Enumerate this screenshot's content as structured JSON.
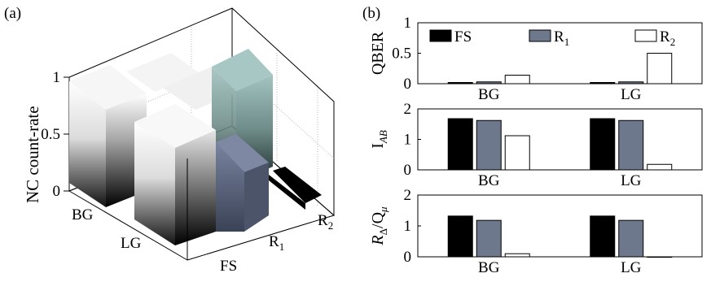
{
  "figure": {
    "panel_a_label": "(a)",
    "panel_b_label": "(b)"
  },
  "chart_data": [
    {
      "panel": "(a)",
      "type": "bar",
      "subtype": "3d-bar",
      "zlabel": "NC count-rate",
      "zlim": [
        0,
        1
      ],
      "zticks": [
        "0",
        "0.5",
        "1"
      ],
      "rows": [
        "BG",
        "LG"
      ],
      "cols": [
        "FS",
        "R",
        "R"
      ],
      "col_subscripts": [
        "",
        "1",
        "2"
      ],
      "values": {
        "BG": [
          1.0,
          1.0,
          1.0
        ],
        "LG": [
          1.0,
          0.5,
          0.05
        ]
      },
      "colors": {
        "FS": "gradient-white-black",
        "R1": "#6b7590",
        "R2": "#000000",
        "back_R2": "#9bbcb9"
      }
    },
    {
      "panel": "(b)",
      "type": "bar",
      "legend": [
        {
          "name": "FS",
          "color": "#000000"
        },
        {
          "name": "R",
          "sub": "1",
          "color": "#6e788c"
        },
        {
          "name": "R",
          "sub": "2",
          "color": "#ffffff"
        }
      ],
      "legend_position": "top",
      "categories": [
        "BG",
        "LG"
      ],
      "subplots": [
        {
          "ylabel": "QBER",
          "ylim": [
            0,
            1
          ],
          "yticks": [
            "0",
            "0.5",
            "1"
          ],
          "series": [
            {
              "name": "FS",
              "values": [
                0.02,
                0.02
              ]
            },
            {
              "name": "R1",
              "values": [
                0.03,
                0.03
              ]
            },
            {
              "name": "R2",
              "values": [
                0.14,
                0.5
              ]
            }
          ]
        },
        {
          "ylabel_main": "I",
          "ylabel_sub": "AB",
          "ylim": [
            0,
            2
          ],
          "yticks": [
            "0",
            "1",
            "2"
          ],
          "series": [
            {
              "name": "FS",
              "values": [
                1.68,
                1.68
              ]
            },
            {
              "name": "R1",
              "values": [
                1.62,
                1.62
              ]
            },
            {
              "name": "R2",
              "values": [
                1.12,
                0.18
              ]
            }
          ]
        },
        {
          "ylabel_main": "R",
          "ylabel_sub1": "Δ",
          "ylabel_mid": "/Q",
          "ylabel_sub2": "μ",
          "ylim": [
            0,
            2
          ],
          "yticks": [
            "0",
            "1",
            "2"
          ],
          "series": [
            {
              "name": "FS",
              "values": [
                1.32,
                1.32
              ]
            },
            {
              "name": "R1",
              "values": [
                1.18,
                1.18
              ]
            },
            {
              "name": "R2",
              "values": [
                0.1,
                0.0
              ]
            }
          ]
        }
      ]
    }
  ]
}
